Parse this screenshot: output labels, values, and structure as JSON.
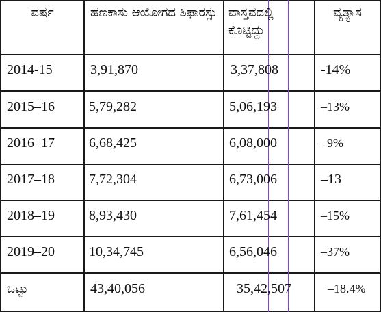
{
  "table": {
    "headers": [
      "ವರ್ಷ",
      "ಹಣಕಾಸು ಆಯೋಗದ ಶಿಫಾರಸ್ಸು",
      "ವಾಸ್ತವದಲ್ಲಿ ಕೊಟ್ಟಿದ್ದು",
      "ವ್ಯತ್ಯಾಸ"
    ],
    "rows": [
      [
        "2014-15",
        "3,91,870",
        "3,37,808",
        "-14%"
      ],
      [
        "2015–16",
        "5,79,282",
        "5,06,193",
        "–13%"
      ],
      [
        "2016–17",
        "6,68,425",
        "6,08,000",
        "–9%"
      ],
      [
        "2017–18",
        "7,72,304",
        "6,73,006",
        "–13"
      ],
      [
        "2018–19",
        "8,93,430",
        "7,61,454",
        "–15%"
      ],
      [
        "2019–20",
        "10,34,745",
        "6,56,046",
        "–37%"
      ],
      [
        "ಒಟ್ಟು",
        "43,40,056",
        "35,42,507",
        "–18.4%"
      ]
    ]
  },
  "colors": {
    "border": "#1a1a1a",
    "guide_line": "#8b3fd9",
    "background": "#ffffff"
  }
}
